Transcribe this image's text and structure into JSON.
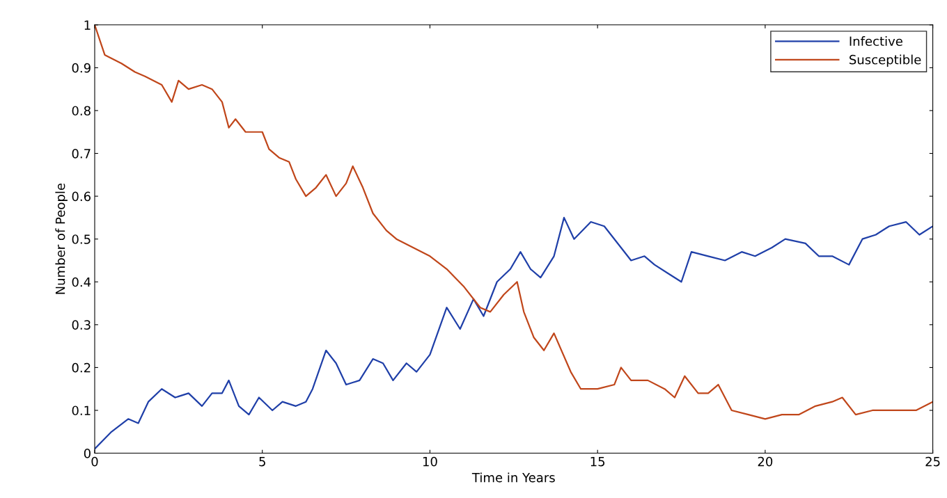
{
  "chart_data": {
    "type": "line",
    "xlabel": "Time in Years",
    "ylabel": "Number of People",
    "xlim": [
      0,
      25
    ],
    "ylim": [
      0,
      1
    ],
    "xticks": [
      0,
      5,
      10,
      15,
      20,
      25
    ],
    "yticks": [
      0,
      0.1,
      0.2,
      0.3,
      0.4,
      0.5,
      0.6,
      0.7,
      0.8,
      0.9,
      1
    ],
    "grid": false,
    "legend": "top right",
    "series": [
      {
        "name": "Infective",
        "color": "#1f3fa8",
        "x": [
          0,
          0.5,
          1.0,
          1.3,
          1.6,
          2.0,
          2.4,
          2.8,
          3.2,
          3.5,
          3.8,
          4.0,
          4.3,
          4.6,
          4.9,
          5.3,
          5.6,
          6.0,
          6.3,
          6.5,
          6.9,
          7.2,
          7.5,
          7.9,
          8.3,
          8.6,
          8.9,
          9.3,
          9.6,
          10.0,
          10.5,
          10.9,
          11.3,
          11.6,
          12.0,
          12.4,
          12.7,
          13.0,
          13.3,
          13.7,
          14.0,
          14.3,
          14.8,
          15.2,
          15.7,
          16.0,
          16.4,
          16.7,
          17.1,
          17.5,
          17.8,
          18.3,
          18.8,
          19.3,
          19.7,
          20.2,
          20.6,
          21.2,
          21.6,
          22.0,
          22.5,
          22.9,
          23.3,
          23.7,
          24.2,
          24.6,
          25.0
        ],
        "values": [
          0.01,
          0.05,
          0.08,
          0.07,
          0.12,
          0.15,
          0.13,
          0.14,
          0.11,
          0.14,
          0.14,
          0.17,
          0.11,
          0.09,
          0.13,
          0.1,
          0.12,
          0.11,
          0.12,
          0.15,
          0.24,
          0.21,
          0.16,
          0.17,
          0.22,
          0.21,
          0.17,
          0.21,
          0.19,
          0.23,
          0.34,
          0.29,
          0.36,
          0.32,
          0.4,
          0.43,
          0.47,
          0.43,
          0.41,
          0.46,
          0.55,
          0.5,
          0.54,
          0.53,
          0.48,
          0.45,
          0.46,
          0.44,
          0.42,
          0.4,
          0.47,
          0.46,
          0.45,
          0.47,
          0.46,
          0.48,
          0.5,
          0.49,
          0.46,
          0.46,
          0.44,
          0.5,
          0.51,
          0.53,
          0.54,
          0.51,
          0.53
        ]
      },
      {
        "name": "Susceptible",
        "color": "#c0461a",
        "x": [
          0,
          0.3,
          0.8,
          1.2,
          1.5,
          2.0,
          2.3,
          2.5,
          2.8,
          3.2,
          3.5,
          3.8,
          4.0,
          4.2,
          4.5,
          5.0,
          5.2,
          5.5,
          5.8,
          6.0,
          6.3,
          6.6,
          6.9,
          7.2,
          7.5,
          7.7,
          8.0,
          8.3,
          8.7,
          9.0,
          9.5,
          10.0,
          10.5,
          11.0,
          11.5,
          11.8,
          12.2,
          12.6,
          12.8,
          13.1,
          13.4,
          13.7,
          14.2,
          14.5,
          15.0,
          15.5,
          15.7,
          16.0,
          16.5,
          17.0,
          17.3,
          17.6,
          18.0,
          18.3,
          18.6,
          19.0,
          19.5,
          20.0,
          20.5,
          21.0,
          21.5,
          22.0,
          22.3,
          22.7,
          23.2,
          24.0,
          24.5,
          25.0
        ],
        "values": [
          1.0,
          0.93,
          0.91,
          0.89,
          0.88,
          0.86,
          0.82,
          0.87,
          0.85,
          0.86,
          0.85,
          0.82,
          0.76,
          0.78,
          0.75,
          0.75,
          0.71,
          0.69,
          0.68,
          0.64,
          0.6,
          0.62,
          0.65,
          0.6,
          0.63,
          0.67,
          0.62,
          0.56,
          0.52,
          0.5,
          0.48,
          0.46,
          0.43,
          0.39,
          0.34,
          0.33,
          0.37,
          0.4,
          0.33,
          0.27,
          0.24,
          0.28,
          0.19,
          0.15,
          0.15,
          0.16,
          0.2,
          0.17,
          0.17,
          0.15,
          0.13,
          0.18,
          0.14,
          0.14,
          0.16,
          0.1,
          0.09,
          0.08,
          0.09,
          0.09,
          0.11,
          0.12,
          0.13,
          0.09,
          0.1,
          0.1,
          0.1,
          0.12
        ]
      }
    ]
  }
}
